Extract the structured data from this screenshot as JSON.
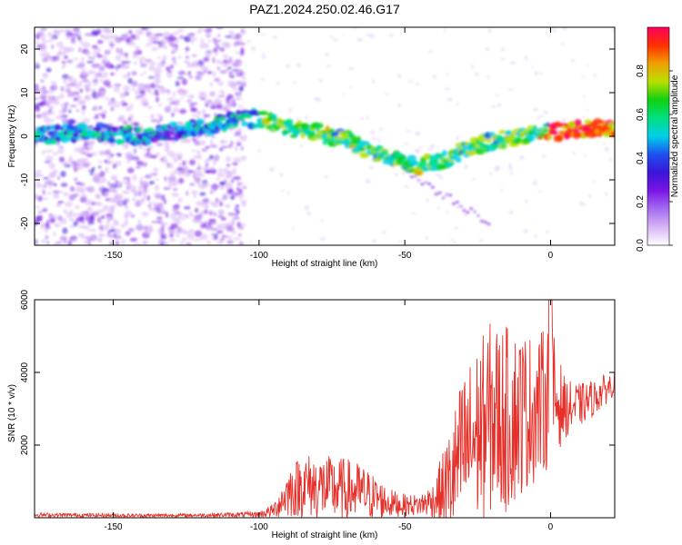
{
  "title": "PAZ1.2024.250.02.46.G17",
  "colorbar": {
    "label": "Normalized spectral amplitude",
    "ticks": [
      0.0,
      0.2,
      0.4,
      0.6,
      0.8
    ],
    "colors": [
      "#ffffff",
      "#d8b4f6",
      "#a56cf0",
      "#7a16e6",
      "#3c14d8",
      "#1e50f0",
      "#00d0e8",
      "#00e080",
      "#10d010",
      "#b8e000",
      "#f0a000",
      "#ff3000",
      "#ff0060"
    ]
  },
  "chart_data": [
    {
      "type": "heatmap",
      "xlabel": "Height of straight line (km)",
      "ylabel": "Frequency (Hz)",
      "xlim": [
        -177,
        22
      ],
      "ylim": [
        -25,
        25
      ],
      "xticks": [
        -150,
        -100,
        -50,
        0
      ],
      "yticks": [
        -20,
        -10,
        0,
        10,
        20
      ],
      "ridge": {
        "x": [
          -177,
          -160,
          -140,
          -120,
          -105,
          -100,
          -95,
          -90,
          -80,
          -70,
          -60,
          -55,
          -50,
          -45,
          -40,
          -35,
          -30,
          -25,
          -20,
          -15,
          -10,
          -5,
          0,
          10,
          20,
          22
        ],
        "frequency": [
          0,
          1,
          0,
          2,
          4,
          4,
          3,
          2,
          1,
          -1,
          -4,
          -5,
          -6,
          -7,
          -6,
          -5,
          -3,
          -2,
          -1,
          -0.5,
          0,
          0.5,
          1,
          1.5,
          2,
          2
        ]
      }
    },
    {
      "type": "line",
      "xlabel": "Height of straight line (km)",
      "ylabel": "SNR (10 * v/v)",
      "xlim": [
        -177,
        22
      ],
      "ylim": [
        0,
        6000
      ],
      "xticks": [
        -150,
        -100,
        -50,
        0
      ],
      "yticks": [
        2000,
        4000,
        6000
      ],
      "color": "#e8302a",
      "envelope": {
        "x": [
          -177,
          -140,
          -120,
          -100,
          -95,
          -90,
          -85,
          -80,
          -75,
          -70,
          -65,
          -60,
          -55,
          -50,
          -45,
          -40,
          -35,
          -30,
          -25,
          -20,
          -15,
          -10,
          -5,
          0,
          5,
          10,
          15,
          20,
          22
        ],
        "mean": [
          80,
          60,
          70,
          90,
          200,
          700,
          900,
          850,
          800,
          750,
          700,
          550,
          400,
          350,
          350,
          500,
          900,
          1800,
          2300,
          2800,
          2700,
          2900,
          3000,
          3400,
          3000,
          3100,
          3300,
          3600,
          3700
        ],
        "amplitude": [
          60,
          50,
          50,
          80,
          200,
          700,
          900,
          900,
          900,
          900,
          800,
          600,
          400,
          300,
          300,
          500,
          1500,
          2200,
          2500,
          2700,
          2600,
          2300,
          2000,
          2000,
          800,
          600,
          500,
          400,
          300
        ]
      }
    }
  ]
}
